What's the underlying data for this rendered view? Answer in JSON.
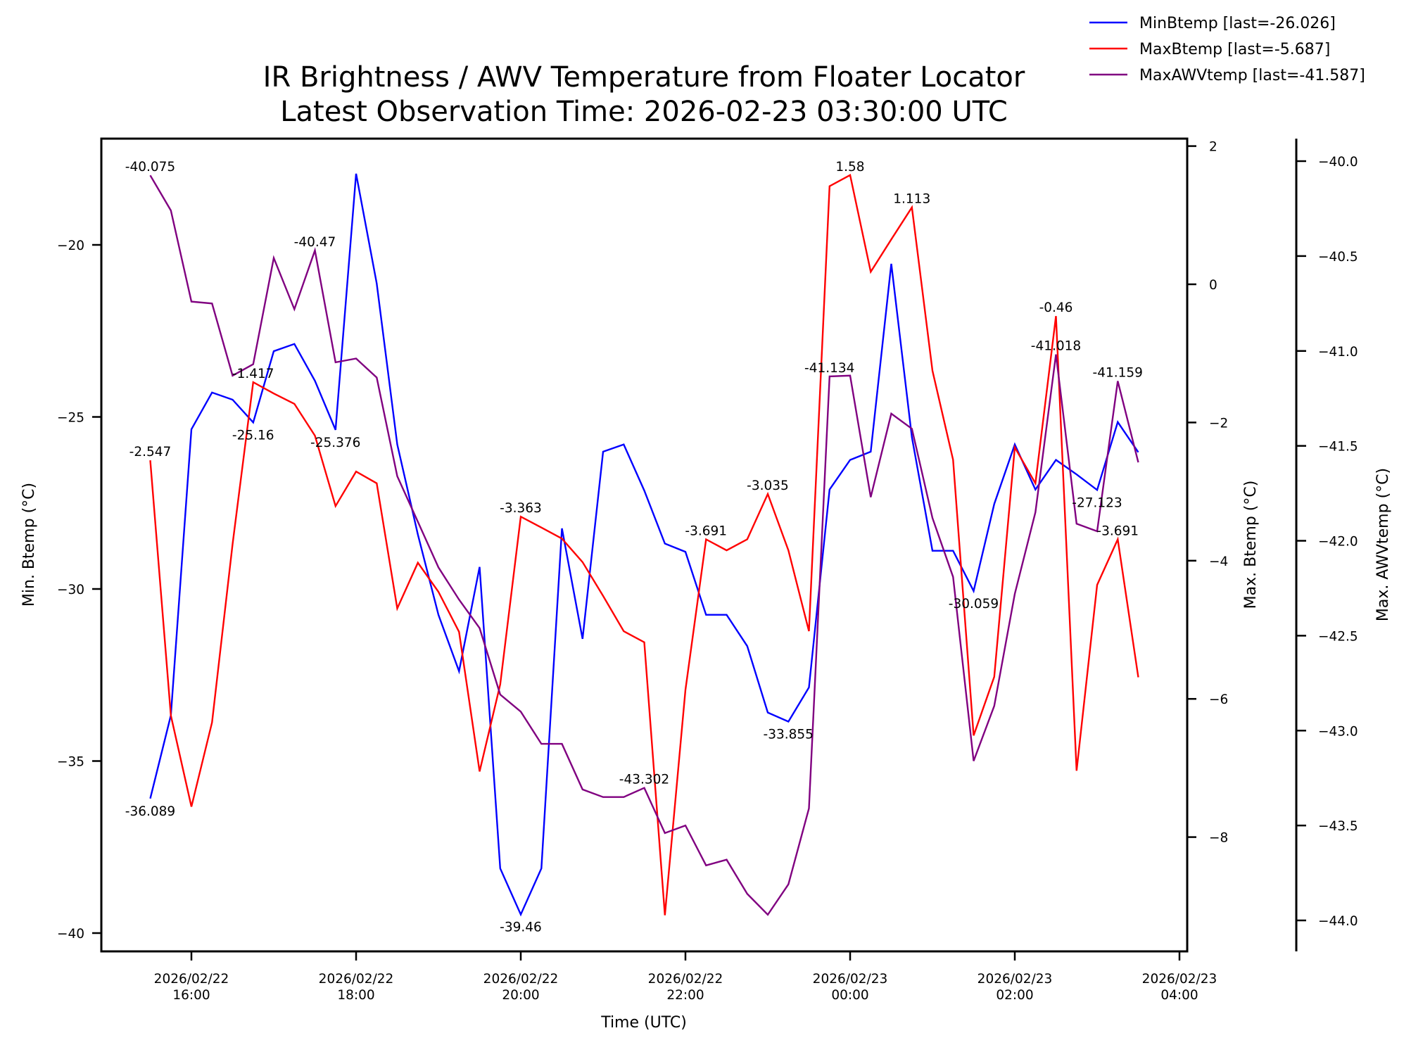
{
  "chart_data": {
    "type": "line",
    "title_line1": "IR Brightness / AWV Temperature from Floater Locator",
    "title_line2": "Latest Observation Time: 2026-02-23 03:30:00 UTC",
    "xlabel": "Time (UTC)",
    "x_start": "2026-02-22 15:30",
    "x_step_minutes": 15,
    "x_range": [
      "2026-02-22 15:15",
      "2026-02-23 04:05"
    ],
    "x_ticks": [
      {
        "hours_from_start": 0.5,
        "line1": "2026/02/22",
        "line2": "16:00"
      },
      {
        "hours_from_start": 2.5,
        "line1": "2026/02/22",
        "line2": "18:00"
      },
      {
        "hours_from_start": 4.5,
        "line1": "2026/02/22",
        "line2": "20:00"
      },
      {
        "hours_from_start": 6.5,
        "line1": "2026/02/22",
        "line2": "22:00"
      },
      {
        "hours_from_start": 8.5,
        "line1": "2026/02/23",
        "line2": "00:00"
      },
      {
        "hours_from_start": 10.5,
        "line1": "2026/02/23",
        "line2": "02:00"
      },
      {
        "hours_from_start": 12.5,
        "line1": "2026/02/23",
        "line2": "04:00"
      }
    ],
    "axes": {
      "left": {
        "label": "Min. Btemp (°C)",
        "ticks": [
          -20,
          -25,
          -30,
          -35,
          -40
        ],
        "tick_labels": [
          "−20",
          "−25",
          "−30",
          "−35",
          "−40"
        ]
      },
      "right": {
        "label": "Max. Btemp (°C)",
        "ticks": [
          2,
          0,
          -2,
          -4,
          -6,
          -8
        ],
        "tick_labels": [
          "2",
          "0",
          "−2",
          "−4",
          "−6",
          "−8"
        ]
      },
      "right2": {
        "label": "Max. AWVtemp (°C)",
        "ticks": [
          -40.0,
          -40.5,
          -41.0,
          -41.5,
          -42.0,
          -42.5,
          -43.0,
          -43.5,
          -44.0
        ],
        "tick_labels": [
          "−40.0",
          "−40.5",
          "−41.0",
          "−41.5",
          "−42.0",
          "−42.5",
          "−43.0",
          "−43.5",
          "−44.0"
        ]
      }
    },
    "legend_position": "top-right",
    "series": [
      {
        "name": "MinBtemp",
        "legend": "MinBtemp [last=-26.026]",
        "color": "#0000ff",
        "axis": "left",
        "values": [
          -36.089,
          -33.67,
          -25.36,
          -24.29,
          -24.5,
          -25.16,
          -23.09,
          -22.88,
          -23.95,
          -25.376,
          -17.93,
          -21.12,
          -25.8,
          -28.42,
          -30.75,
          -32.39,
          -29.36,
          -38.12,
          -39.46,
          -38.12,
          -28.24,
          -31.45,
          -26.01,
          -25.8,
          -27.14,
          -28.68,
          -28.92,
          -30.75,
          -30.75,
          -31.66,
          -33.59,
          -33.855,
          -32.86,
          -27.11,
          -26.25,
          -26.01,
          -20.55,
          -25.59,
          -28.89,
          -28.89,
          -30.059,
          -27.53,
          -25.8,
          -27.11,
          -26.25,
          -26.67,
          -27.123,
          -25.15,
          -26.026
        ],
        "annotations": [
          {
            "index": 0,
            "text": "-36.089",
            "pos": "below"
          },
          {
            "index": 5,
            "text": "-25.16",
            "pos": "below"
          },
          {
            "index": 9,
            "text": "-25.376",
            "pos": "below"
          },
          {
            "index": 18,
            "text": "-39.46",
            "pos": "below"
          },
          {
            "index": 31,
            "text": "-33.855",
            "pos": "below"
          },
          {
            "index": 40,
            "text": "-30.059",
            "pos": "below"
          },
          {
            "index": 46,
            "text": "-27.123",
            "pos": "below"
          }
        ]
      },
      {
        "name": "MaxBtemp",
        "legend": "MaxBtemp [last=-5.687]",
        "color": "#ff0000",
        "axis": "right",
        "values": [
          -2.547,
          -6.24,
          -7.56,
          -6.34,
          -3.76,
          -1.417,
          -1.58,
          -1.73,
          -2.19,
          -3.21,
          -2.71,
          -2.88,
          -4.69,
          -4.03,
          -4.45,
          -5.03,
          -7.05,
          -5.79,
          -3.363,
          -3.52,
          -3.68,
          -4.02,
          -4.51,
          -5.02,
          -5.18,
          -9.13,
          -5.87,
          -3.691,
          -3.85,
          -3.69,
          -3.035,
          -3.85,
          -5.02,
          1.42,
          1.58,
          0.18,
          0.65,
          1.113,
          -1.25,
          -2.54,
          -6.53,
          -5.68,
          -2.36,
          -2.88,
          -0.46,
          -7.04,
          -4.35,
          -3.691,
          -5.687
        ],
        "annotations": [
          {
            "index": 0,
            "text": "-2.547",
            "pos": "above"
          },
          {
            "index": 5,
            "text": "-1.417",
            "pos": "above"
          },
          {
            "index": 18,
            "text": "-3.363",
            "pos": "above"
          },
          {
            "index": 27,
            "text": "-3.691",
            "pos": "above"
          },
          {
            "index": 30,
            "text": "-3.035",
            "pos": "above"
          },
          {
            "index": 34,
            "text": "1.58",
            "pos": "above"
          },
          {
            "index": 37,
            "text": "1.113",
            "pos": "above"
          },
          {
            "index": 44,
            "text": "-0.46",
            "pos": "above"
          },
          {
            "index": 47,
            "text": "-3.691",
            "pos": "above"
          }
        ]
      },
      {
        "name": "MaxAWVtemp",
        "legend": "MaxAWVtemp [last=-41.587]",
        "color": "#800080",
        "axis": "right2",
        "values": [
          -40.075,
          -40.26,
          -40.74,
          -40.75,
          -41.13,
          -41.07,
          -40.51,
          -40.78,
          -40.47,
          -41.06,
          -41.04,
          -41.14,
          -41.66,
          -41.9,
          -42.14,
          -42.31,
          -42.46,
          -42.81,
          -42.9,
          -43.07,
          -43.07,
          -43.31,
          -43.35,
          -43.35,
          -43.302,
          -43.54,
          -43.5,
          -43.71,
          -43.68,
          -43.86,
          -43.97,
          -43.81,
          -43.41,
          -41.134,
          -41.13,
          -41.77,
          -41.33,
          -41.41,
          -41.88,
          -42.19,
          -43.16,
          -42.87,
          -42.28,
          -41.85,
          -41.018,
          -41.91,
          -41.95,
          -41.159,
          -41.587
        ],
        "annotations": [
          {
            "index": 0,
            "text": "-40.075",
            "pos": "above"
          },
          {
            "index": 8,
            "text": "-40.47",
            "pos": "above"
          },
          {
            "index": 24,
            "text": "-43.302",
            "pos": "above"
          },
          {
            "index": 33,
            "text": "-41.134",
            "pos": "above"
          },
          {
            "index": 44,
            "text": "-41.018",
            "pos": "above"
          },
          {
            "index": 47,
            "text": "-41.159",
            "pos": "above"
          }
        ]
      }
    ]
  }
}
